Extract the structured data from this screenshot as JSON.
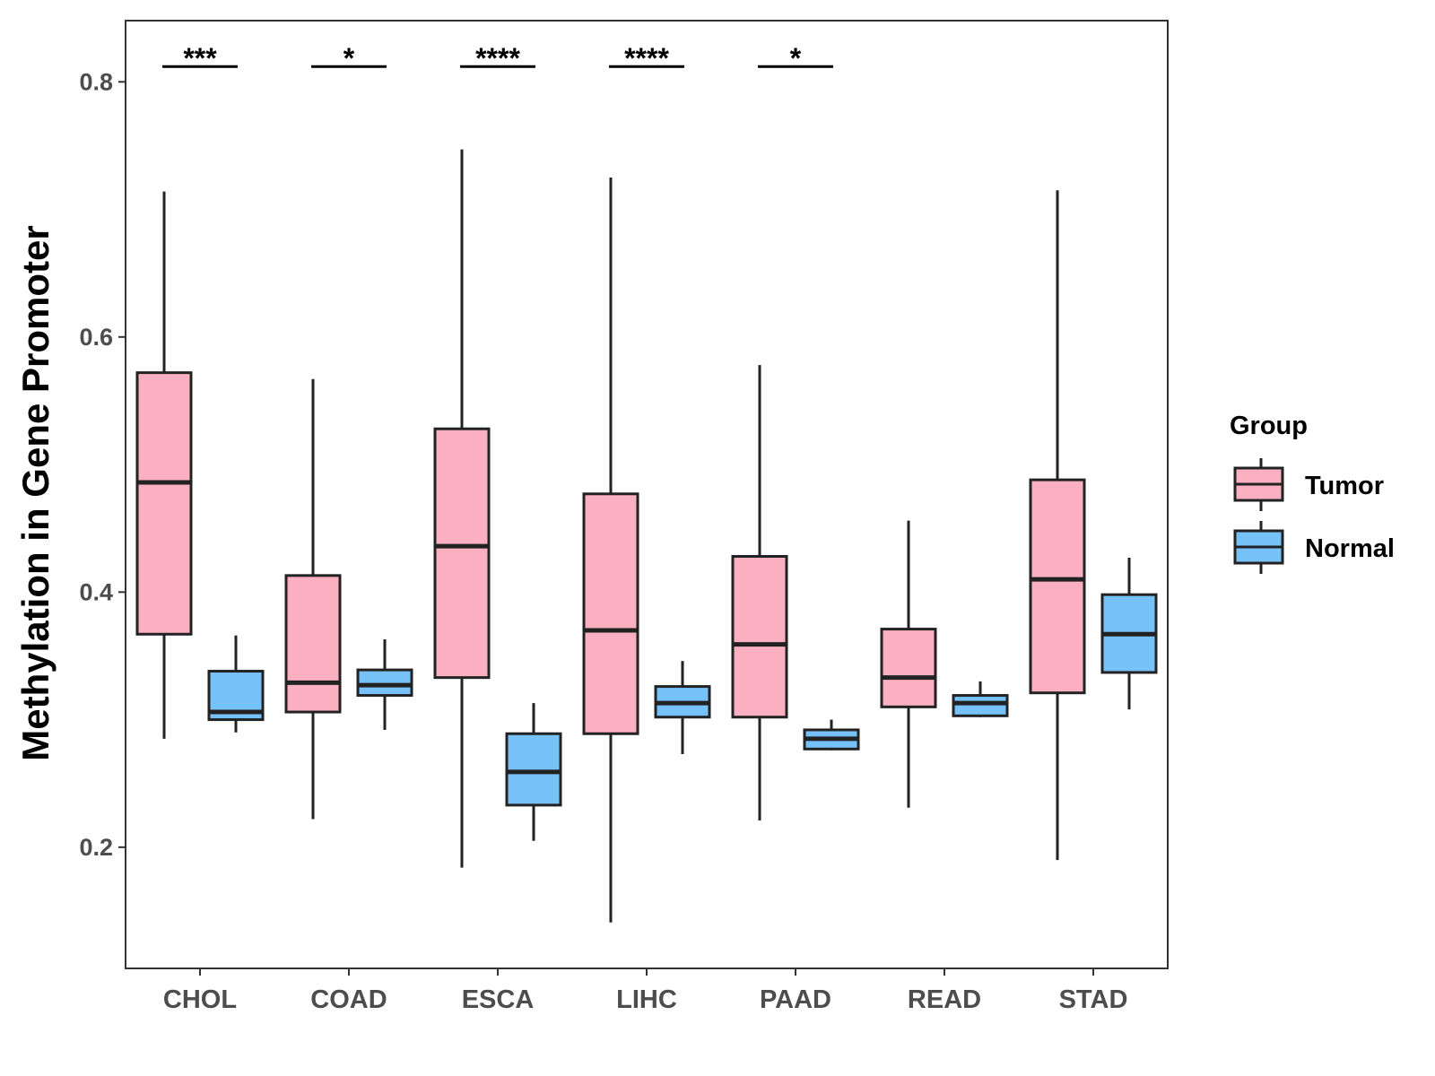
{
  "chart_data": {
    "type": "box",
    "title": "",
    "xlabel": "",
    "ylabel": "Methylation in Gene Promoter",
    "ylim": [
      0.105,
      0.848
    ],
    "yticks": [
      0.2,
      0.4,
      0.6,
      0.8
    ],
    "ytick_labels": [
      "0.2",
      "0.4",
      "0.6",
      "0.8"
    ],
    "categories": [
      "CHOL",
      "COAD",
      "ESCA",
      "LIHC",
      "PAAD",
      "READ",
      "STAD"
    ],
    "legend": {
      "title": "Group",
      "position": "right",
      "entries": [
        {
          "name": "Tumor",
          "color": "#FBB0C1"
        },
        {
          "name": "Normal",
          "color": "#76C2F8"
        }
      ]
    },
    "series": [
      {
        "name": "Tumor",
        "color": "#FBB0C1",
        "boxes": [
          {
            "min": 0.285,
            "q1": 0.367,
            "median": 0.486,
            "q3": 0.572,
            "max": 0.714
          },
          {
            "min": 0.222,
            "q1": 0.306,
            "median": 0.329,
            "q3": 0.413,
            "max": 0.567
          },
          {
            "min": 0.184,
            "q1": 0.333,
            "median": 0.436,
            "q3": 0.528,
            "max": 0.747
          },
          {
            "min": 0.141,
            "q1": 0.289,
            "median": 0.37,
            "q3": 0.477,
            "max": 0.725
          },
          {
            "min": 0.221,
            "q1": 0.302,
            "median": 0.359,
            "q3": 0.428,
            "max": 0.578
          },
          {
            "min": 0.231,
            "q1": 0.31,
            "median": 0.333,
            "q3": 0.371,
            "max": 0.456
          },
          {
            "min": 0.19,
            "q1": 0.321,
            "median": 0.41,
            "q3": 0.488,
            "max": 0.715
          }
        ]
      },
      {
        "name": "Normal",
        "color": "#76C2F8",
        "boxes": [
          {
            "min": 0.29,
            "q1": 0.3,
            "median": 0.306,
            "q3": 0.338,
            "max": 0.366
          },
          {
            "min": 0.292,
            "q1": 0.319,
            "median": 0.327,
            "q3": 0.339,
            "max": 0.363
          },
          {
            "min": 0.205,
            "q1": 0.233,
            "median": 0.259,
            "q3": 0.289,
            "max": 0.313
          },
          {
            "min": 0.273,
            "q1": 0.302,
            "median": 0.313,
            "q3": 0.326,
            "max": 0.346
          },
          {
            "min": 0.276,
            "q1": 0.277,
            "median": 0.285,
            "q3": 0.292,
            "max": 0.3
          },
          {
            "min": 0.302,
            "q1": 0.303,
            "median": 0.313,
            "q3": 0.319,
            "max": 0.33
          },
          {
            "min": 0.308,
            "q1": 0.337,
            "median": 0.367,
            "q3": 0.398,
            "max": 0.427
          }
        ]
      }
    ],
    "significance": [
      {
        "category": "CHOL",
        "label": "***"
      },
      {
        "category": "COAD",
        "label": "*"
      },
      {
        "category": "ESCA",
        "label": "****"
      },
      {
        "category": "LIHC",
        "label": "****"
      },
      {
        "category": "PAAD",
        "label": "*"
      },
      {
        "category": "READ",
        "label": ""
      },
      {
        "category": "STAD",
        "label": ""
      }
    ],
    "significance_y": 0.812,
    "grid": false
  }
}
